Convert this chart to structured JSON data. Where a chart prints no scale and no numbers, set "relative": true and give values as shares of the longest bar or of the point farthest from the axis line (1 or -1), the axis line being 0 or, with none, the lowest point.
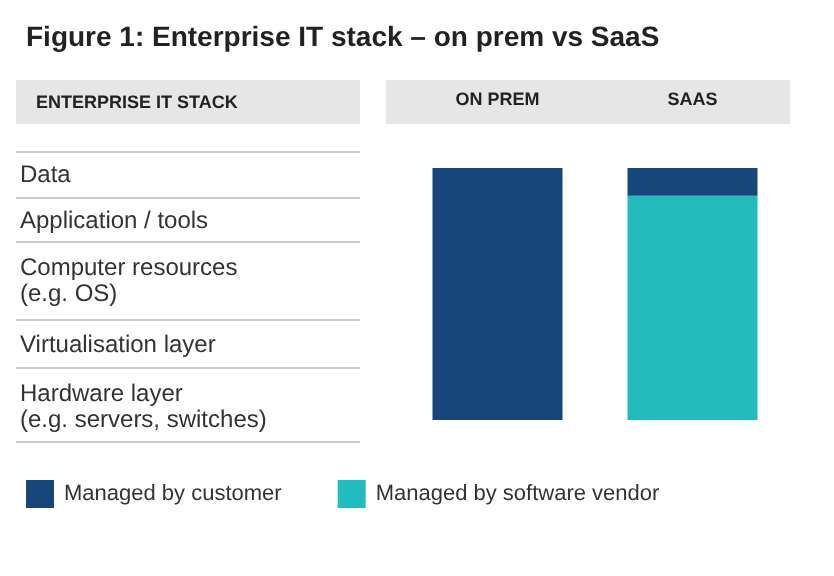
{
  "chart_data": {
    "type": "bar",
    "title": "Figure 1: Enterprise IT stack – on prem vs SaaS",
    "categories": [
      "ON PREM",
      "SAAS"
    ],
    "stacked": true,
    "relative": true,
    "legend": "bottom",
    "series": [
      {
        "name": "Managed by software vendor",
        "color": "#22bcbf",
        "values": [
          0,
          0.89
        ]
      },
      {
        "name": "Managed by customer",
        "color": "#17477a",
        "values": [
          1,
          0.11
        ]
      }
    ],
    "annotations": [
      "ENTERPRISE IT STACK",
      "Data",
      "Application / tools",
      "Computer resources\n(e.g. OS)",
      "Virtualisation layer",
      "Hardware layer\n(e.g. servers, switches)"
    ]
  }
}
